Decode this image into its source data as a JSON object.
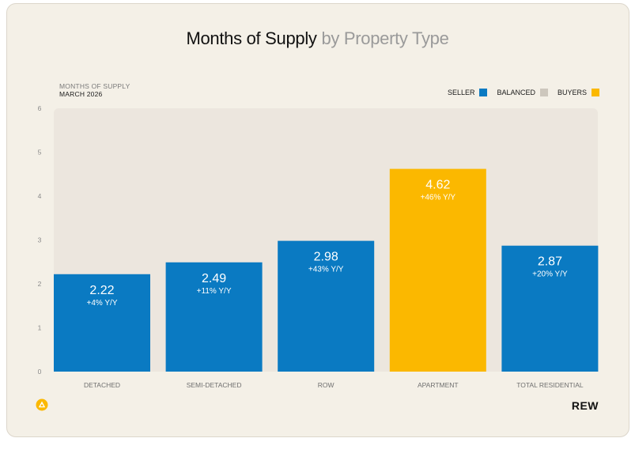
{
  "title_main": "Months of Supply",
  "title_sub": "by Property Type",
  "subtitle_line1": "MONTHS OF SUPPLY",
  "subtitle_line2": "MARCH 2026",
  "brand": "REW",
  "colors": {
    "seller": "#0a7ac2",
    "balanced": "#cdc7bd",
    "buyers": "#fbb800",
    "plot_bg": "#ece6de",
    "card_bg": "#f4f0e7"
  },
  "legend": [
    {
      "label": "SELLER",
      "color": "#0a7ac2"
    },
    {
      "label": "BALANCED",
      "color": "#cdc7bd"
    },
    {
      "label": "BUYERS",
      "color": "#fbb800"
    }
  ],
  "chart_data": {
    "type": "bar",
    "categories": [
      "DETACHED",
      "SEMI-DETACHED",
      "ROW",
      "APARTMENT",
      "TOTAL RESIDENTIAL"
    ],
    "values": [
      2.22,
      2.49,
      2.98,
      4.62,
      2.87
    ],
    "value_labels": [
      "2.22",
      "2.49",
      "2.98",
      "4.62",
      "2.87"
    ],
    "change_labels": [
      "+4% Y/Y",
      "+11% Y/Y",
      "+43% Y/Y",
      "+46% Y/Y",
      "+20% Y/Y"
    ],
    "market": [
      "seller",
      "seller",
      "seller",
      "buyers",
      "seller"
    ],
    "ylim": [
      0,
      6
    ],
    "yticks": [
      0,
      1,
      2,
      3,
      4,
      5,
      6
    ],
    "ylabel": "MONTHS OF SUPPLY",
    "grid": false,
    "legend_position": "top-right",
    "balanced_band": [
      2.2,
      6
    ]
  }
}
